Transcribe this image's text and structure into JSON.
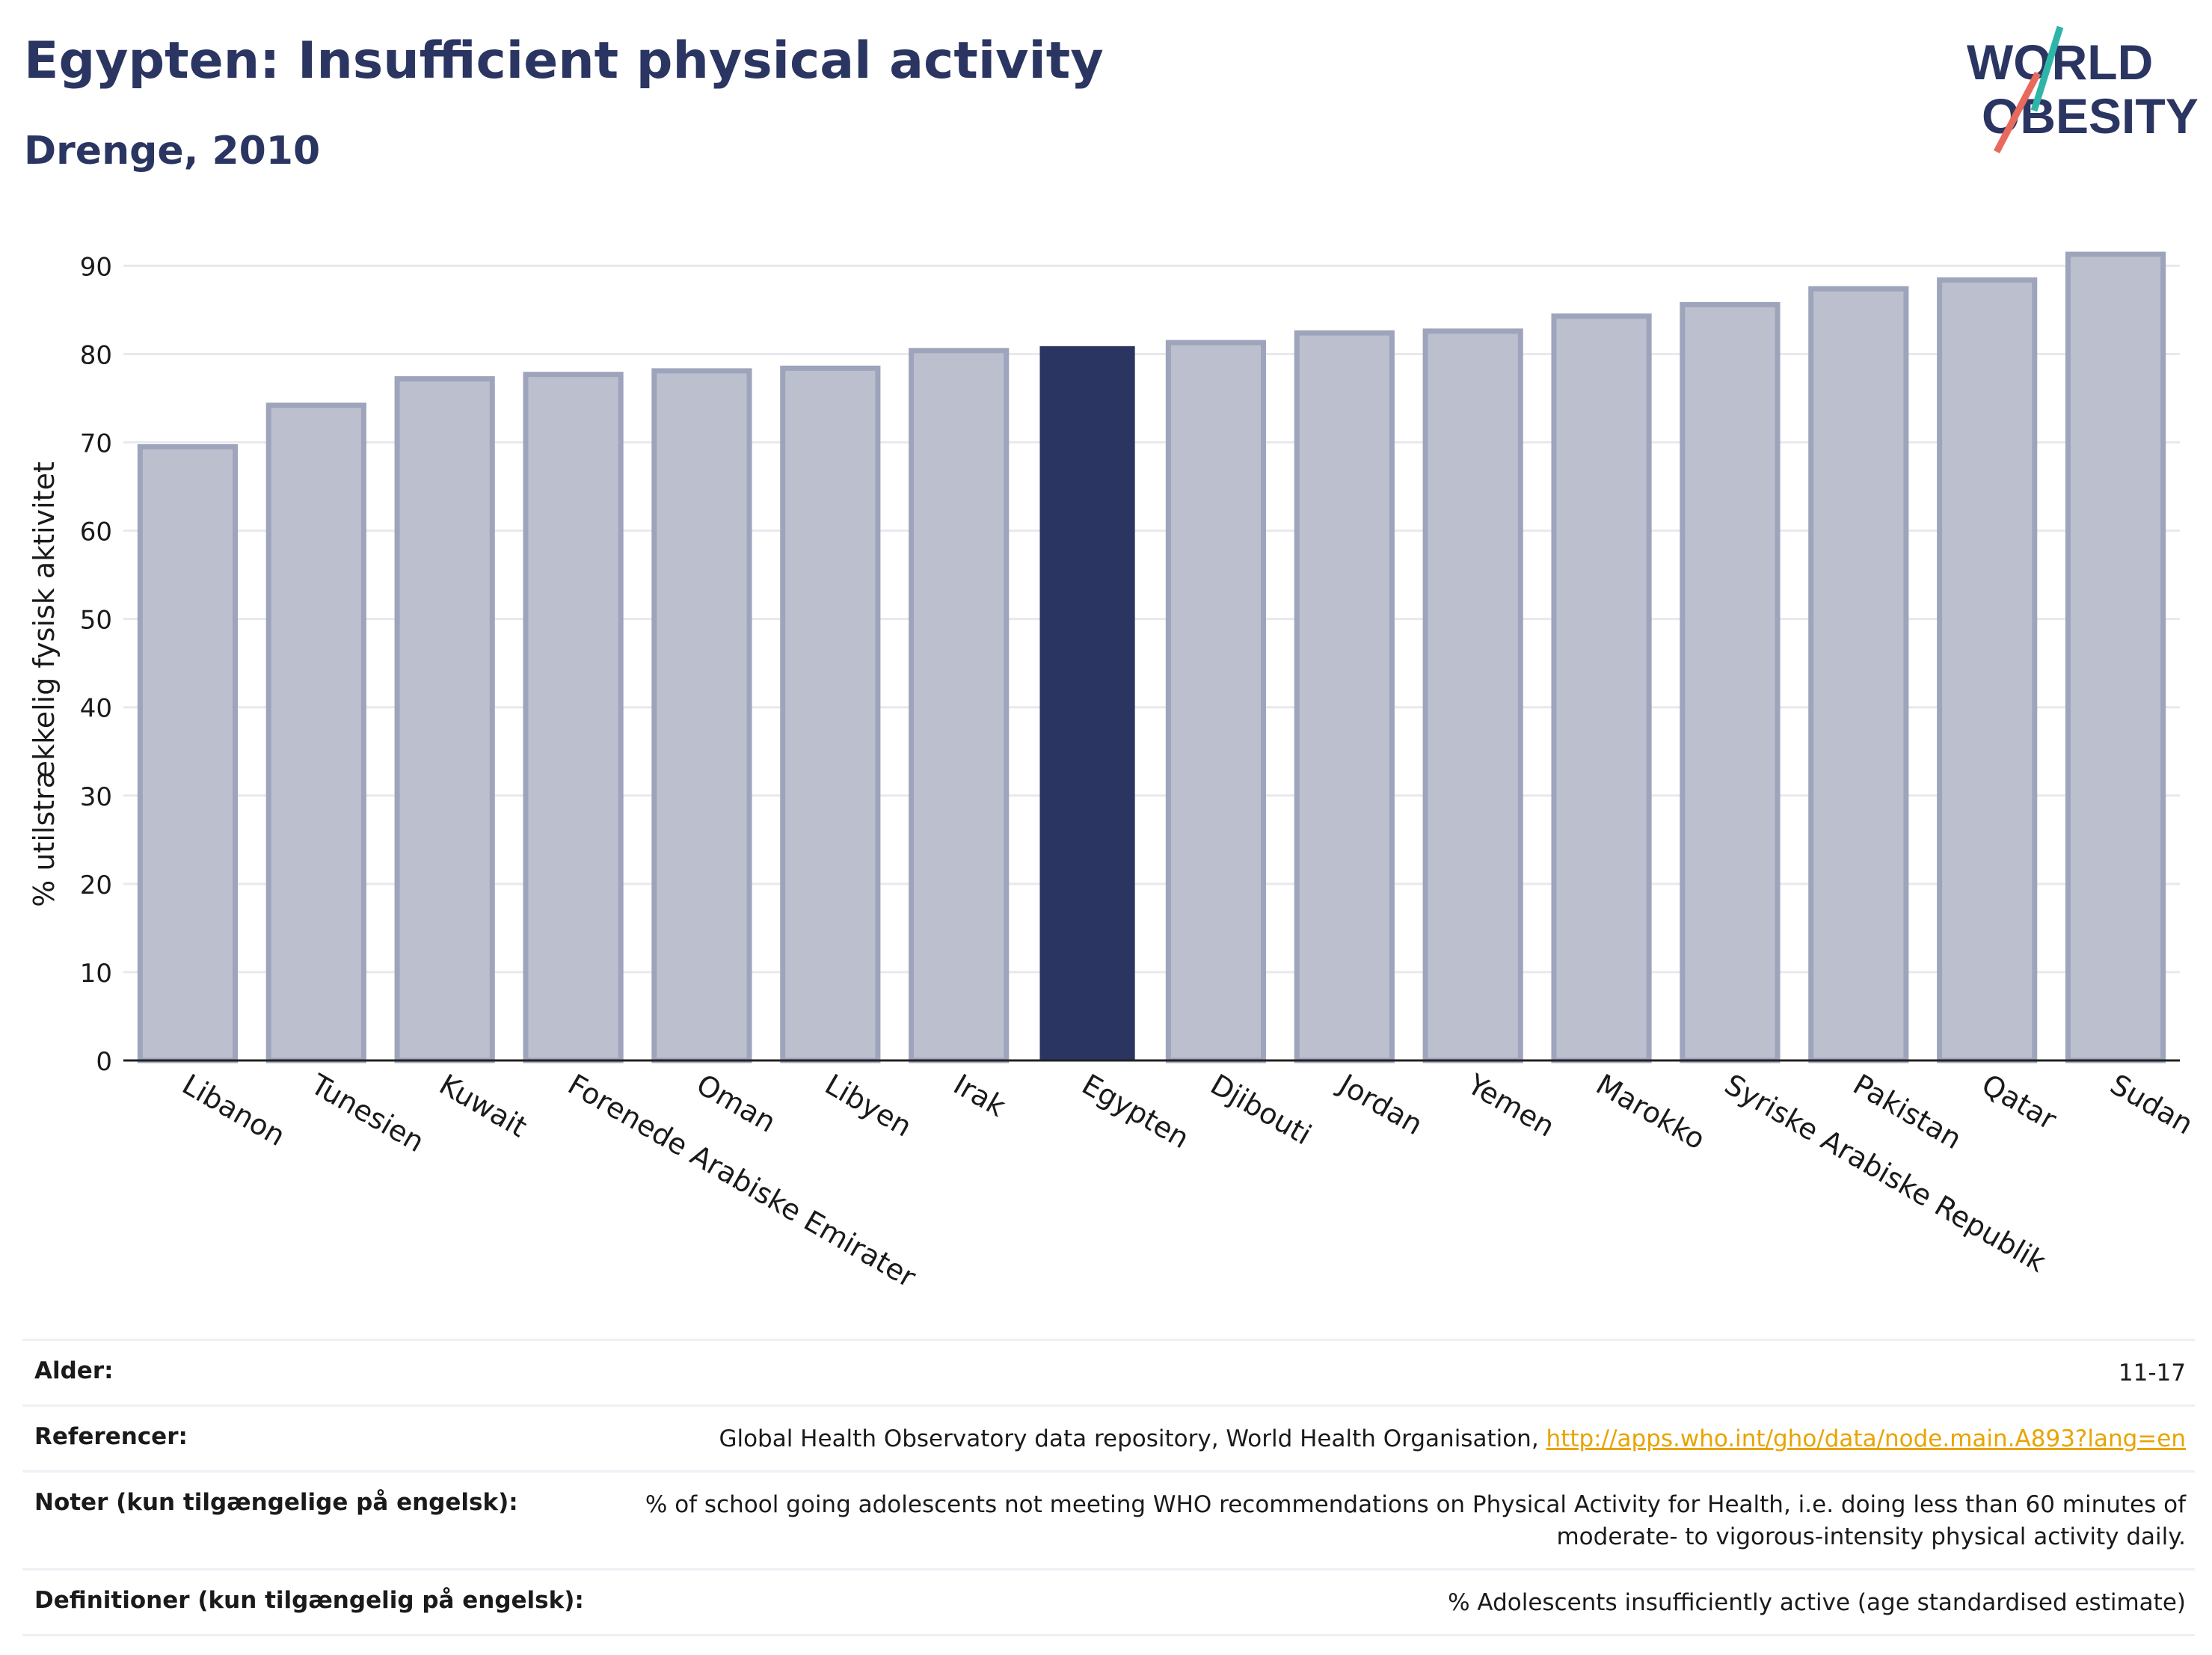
{
  "header": {
    "title": "Egypten: Insufficient physical activity",
    "subtitle": "Drenge, 2010",
    "logo_line1": "WORLD",
    "logo_line2": "OBESITY"
  },
  "colors": {
    "highlight": "#2b3561",
    "bar": "#bcc0ce",
    "bar_border": "#9ea4bb",
    "title": "#2b3561",
    "link": "#e8a400"
  },
  "chart_data": {
    "type": "bar",
    "title": "Egypten: Insufficient physical activity",
    "subtitle": "Drenge, 2010",
    "xlabel": "",
    "ylabel": "% utilstrækkelig fysisk aktivitet",
    "ylim": [
      0,
      93
    ],
    "yticks": [
      0,
      10,
      20,
      30,
      40,
      50,
      60,
      70,
      80,
      90
    ],
    "grid": true,
    "highlight": "Egypten",
    "categories": [
      "Libanon",
      "Tunesien",
      "Kuwait",
      "Forenede Arabiske Emirater",
      "Oman",
      "Libyen",
      "Irak",
      "Egypten",
      "Djibouti",
      "Jordan",
      "Yemen",
      "Marokko",
      "Syriske Arabiske Republik",
      "Pakistan",
      "Qatar",
      "Sudan"
    ],
    "values": [
      69.5,
      74.2,
      77.2,
      77.7,
      78.1,
      78.4,
      80.4,
      80.9,
      81.3,
      82.4,
      82.6,
      84.3,
      85.6,
      87.4,
      88.4,
      91.3
    ]
  },
  "table": [
    {
      "label": "Alder:",
      "value": "11-17"
    },
    {
      "label": "Referencer:",
      "value": "Global Health Observatory data repository, World Health Organisation, ",
      "link": "http://apps.who.int/gho/data/node.main.A893?lang=en"
    },
    {
      "label": "Noter (kun tilgængelige på engelsk):",
      "value": "% of school going adolescents not meeting WHO recommendations on Physical Activity for Health, i.e. doing less than 60 minutes of moderate- to vigorous-intensity physical activity daily."
    },
    {
      "label": "Definitioner (kun tilgængelig på engelsk):",
      "value": "% Adolescents insufficiently active (age standardised estimate)"
    }
  ]
}
